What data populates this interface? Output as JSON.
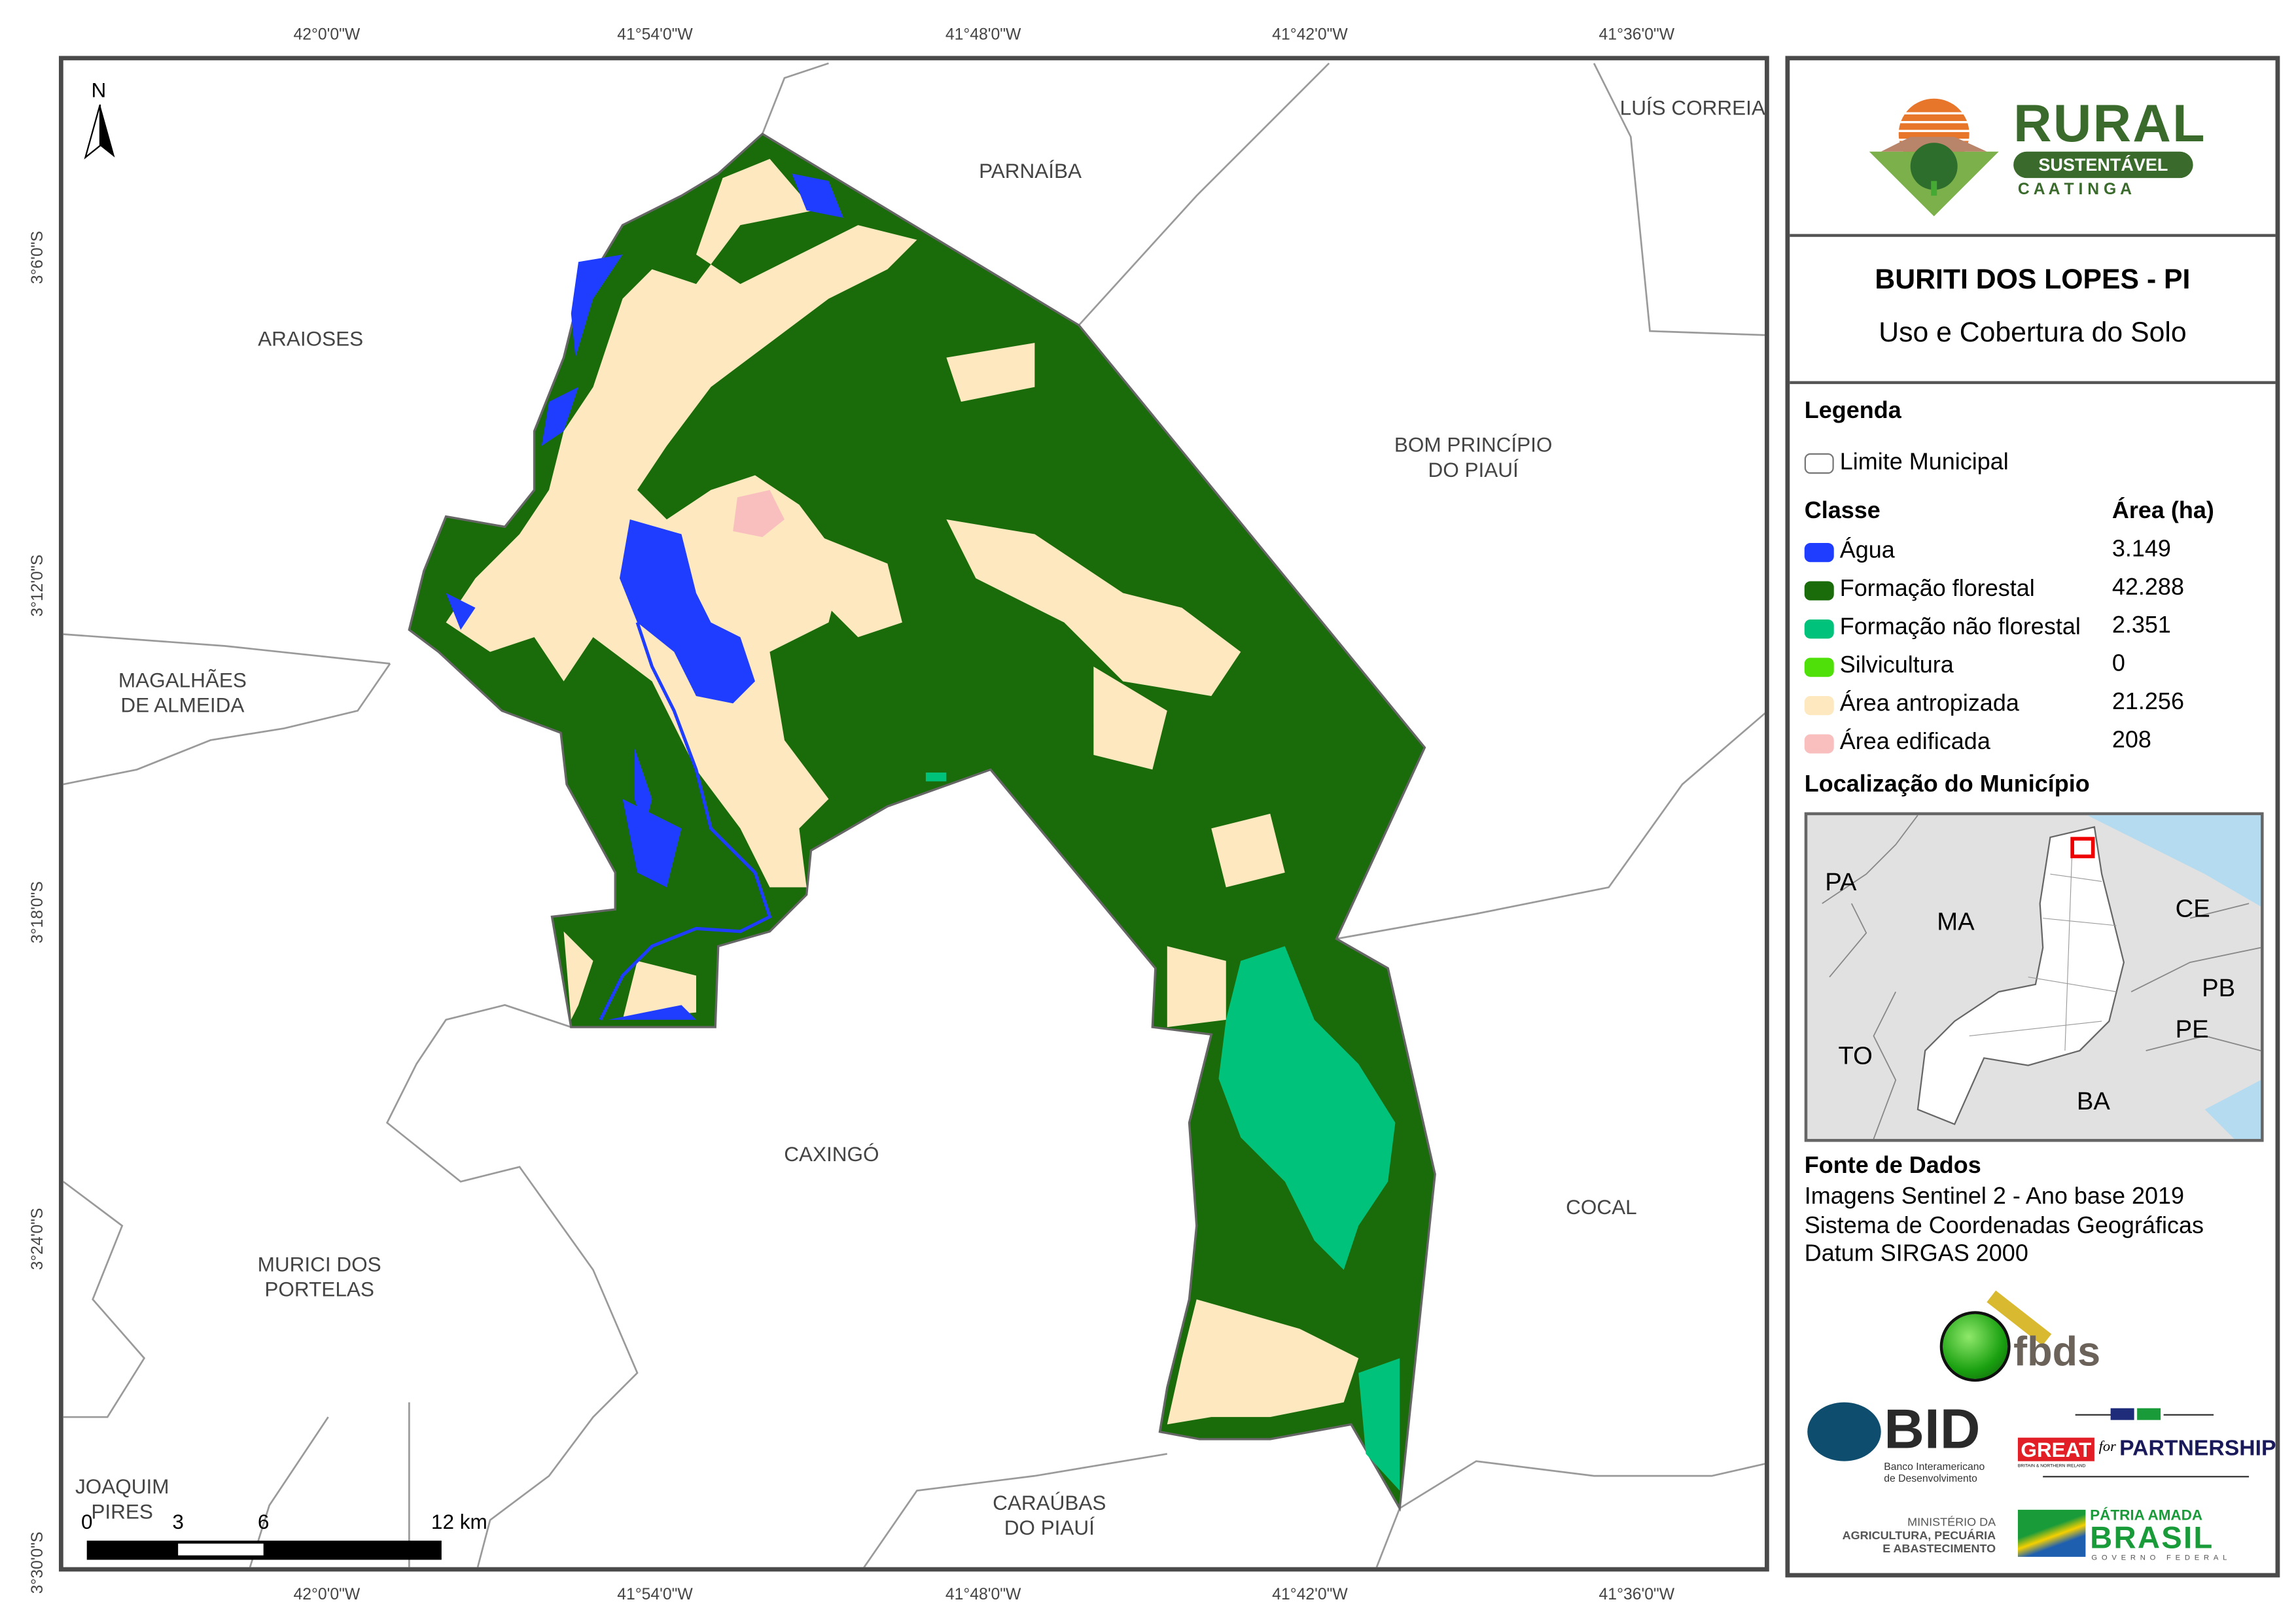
{
  "map": {
    "graticule": {
      "longitudes": [
        "42°0'0\"W",
        "41°54'0\"W",
        "41°48'0\"W",
        "41°42'0\"W",
        "41°36'0\"W"
      ],
      "latitudes": [
        "3°6'0\"S",
        "3°12'0\"S",
        "3°18'0\"S",
        "3°24'0\"S",
        "3°30'0\"S"
      ]
    },
    "north_label": "N",
    "neighbors": {
      "parnaiba": "PARNAÍBA",
      "luis_correia": "LUÍS CORREIA",
      "araioses": "ARAIOSES",
      "bom_principio_1": "BOM PRINCÍPIO",
      "bom_principio_2": "DO PIAUÍ",
      "magalhaes_1": "MAGALHÃES",
      "magalhaes_2": "DE ALMEIDA",
      "caxingo": "CAXINGÓ",
      "cocal": "COCAL",
      "murici_1": "MURICI DOS",
      "murici_2": "PORTELAS",
      "joaquim_1": "JOAQUIM",
      "joaquim_2": "PIRES",
      "caraubas_1": "CARAÚBAS",
      "caraubas_2": "DO PIAUÍ"
    },
    "scale_bar": {
      "labels": [
        "0",
        "3",
        "6",
        "12 km"
      ]
    }
  },
  "panel": {
    "logo": {
      "line1": "RURAL",
      "line2": "SUSTENTÁVEL",
      "line3": "C A A T I N G A"
    },
    "title": "BURITI DOS LOPES - PI",
    "subtitle": "Uso e Cobertura do Solo",
    "legend": {
      "heading": "Legenda",
      "limit_label": "Limite Municipal",
      "class_header": "Classe",
      "area_header": "Área (ha)",
      "classes": [
        {
          "label": "Água",
          "area": "3.149",
          "color": "#1f3dff"
        },
        {
          "label": "Formação florestal",
          "area": "42.288",
          "color": "#1a6b0a"
        },
        {
          "label": "Formação não florestal",
          "area": "2.351",
          "color": "#00c27a"
        },
        {
          "label": "Silvicultura",
          "area": "0",
          "color": "#4fe00a"
        },
        {
          "label": "Área antropizada",
          "area": "21.256",
          "color": "#fde8bf"
        },
        {
          "label": "Área edificada",
          "area": "208",
          "color": "#f9bfbf"
        }
      ]
    },
    "location": {
      "heading": "Localização do Município",
      "states": [
        "PA",
        "MA",
        "CE",
        "PB",
        "PE",
        "TO",
        "BA"
      ]
    },
    "sources": {
      "heading": "Fonte de Dados",
      "lines": [
        "Imagens Sentinel 2 - Ano base 2019",
        "Sistema de Coordenadas Geográficas",
        "Datum SIRGAS 2000"
      ]
    },
    "partners": {
      "fbds": "fbds",
      "bid": "BID",
      "bid_sub1": "Banco Interamericano",
      "bid_sub2": "de Desenvolvimento",
      "great": "GREAT",
      "great_for": "for",
      "great_partnership": "PARTNERSHIP",
      "great_sub": "BRITAIN & NORTHERN IRELAND",
      "ministry1": "MINISTÉRIO DA",
      "ministry2": "AGRICULTURA, PECUÁRIA",
      "ministry3": "E ABASTECIMENTO",
      "brasil1": "PÁTRIA AMADA",
      "brasil2": "BRASIL",
      "brasil3": "GOVERNO FEDERAL"
    }
  }
}
